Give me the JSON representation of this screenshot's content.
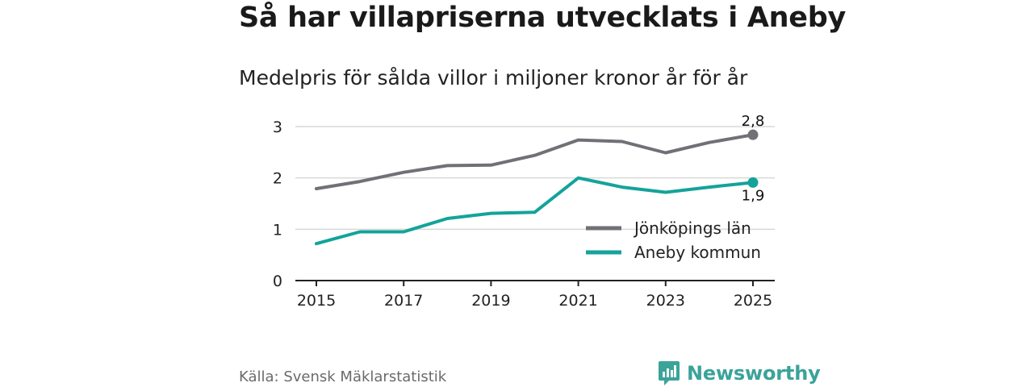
{
  "header": {
    "title": "Så har villapriserna utvecklats i Aneby",
    "subtitle": "Medelpris för sålda villor i miljoner kronor år för år"
  },
  "footer": {
    "source": "Källa: Svensk Mäklarstatistik",
    "brand": "Newsworthy",
    "brand_icon": "bar-chart-speech-icon"
  },
  "colors": {
    "jonkoping": "#707076",
    "aneby": "#14a39a",
    "grid": "#d9d9d9",
    "axis": "#222222",
    "brand": "#3aa39a"
  },
  "chart_data": {
    "type": "line",
    "title": "Medelpris för sålda villor i miljoner kronor år för år",
    "xlabel": "",
    "ylabel": "",
    "x": [
      2015,
      2016,
      2017,
      2018,
      2019,
      2020,
      2021,
      2022,
      2023,
      2024,
      2025
    ],
    "xticks": [
      "2015",
      "2017",
      "2019",
      "2021",
      "2023",
      "2025"
    ],
    "xlim": [
      2015,
      2025
    ],
    "yticks": [
      "0",
      "1",
      "2",
      "3"
    ],
    "ylim": [
      0,
      3
    ],
    "grid": true,
    "legend_position": "bottom-right",
    "series": [
      {
        "name": "Jönköpings län",
        "color": "#707076",
        "values": [
          1.79,
          1.93,
          2.11,
          2.24,
          2.25,
          2.44,
          2.74,
          2.71,
          2.49,
          2.69,
          2.84
        ],
        "end_label": "2,8"
      },
      {
        "name": "Aneby kommun",
        "color": "#14a39a",
        "values": [
          0.72,
          0.95,
          0.95,
          1.21,
          1.31,
          1.33,
          2.0,
          1.82,
          1.72,
          1.82,
          1.91
        ],
        "end_label": "1,9"
      }
    ]
  }
}
